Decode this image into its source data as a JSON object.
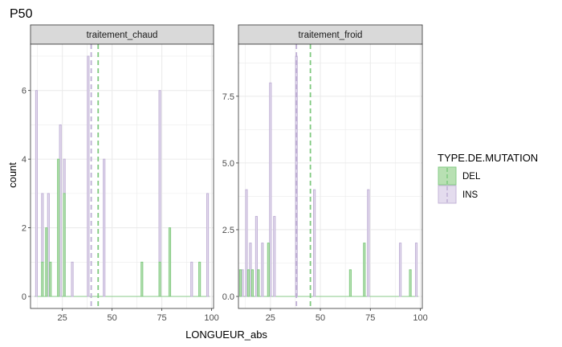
{
  "chart_data": {
    "type": "bar",
    "title": "P50",
    "xlabel": "LONGUEUR_abs",
    "ylabel": "count",
    "grid": true,
    "legend_placement": "right",
    "legend": {
      "title": "TYPE.DE.MUTATION",
      "entries": [
        {
          "label": "DEL",
          "fill": "#b8e0b3",
          "stroke": "#7fc97f"
        },
        {
          "label": "INS",
          "fill": "#e4dcee",
          "stroke": "#beaed4"
        }
      ]
    },
    "colors": {
      "DEL_fill": "#b8e0b3",
      "DEL_stroke": "#7fc97f",
      "INS_fill": "#e4dcee",
      "INS_stroke": "#beaed4",
      "strip_bg": "#d9d9d9",
      "grid": "#ebebeb"
    },
    "xlim": [
      9,
      101
    ],
    "x_ticks": [
      25,
      50,
      75,
      100
    ],
    "bar_width": 0.9,
    "panels": [
      {
        "strip": "traitement_chaud",
        "ylim": [
          -0.35,
          7.35
        ],
        "y_ticks": [
          0,
          2,
          4,
          6
        ],
        "y_tick_labels": [
          "0",
          "2",
          "4",
          "6"
        ],
        "mean_lines": {
          "INS": 39.5,
          "DEL": 43
        },
        "series": [
          {
            "name": "INS",
            "x": [
              12,
              15,
              18,
              24,
              26,
              30,
              38,
              46,
              74,
              90,
              98
            ],
            "y": [
              6,
              3,
              3,
              5,
              4,
              1,
              7,
              4,
              6,
              1,
              3
            ]
          },
          {
            "name": "DEL",
            "x": [
              15,
              17,
              19,
              23,
              26,
              65,
              74,
              79,
              94
            ],
            "y": [
              1,
              2,
              1,
              4,
              3,
              1,
              1,
              2,
              1
            ]
          }
        ]
      },
      {
        "strip": "traitement_froid",
        "ylim": [
          -0.45,
          9.45
        ],
        "y_ticks": [
          0,
          2.5,
          5,
          7.5
        ],
        "y_tick_labels": [
          "0.0",
          "2.5",
          "5.0",
          "7.5"
        ],
        "mean_lines": {
          "INS": 38,
          "DEL": 45
        },
        "series": [
          {
            "name": "INS",
            "x": [
              11,
              13,
              15,
              18,
              21,
              25,
              27,
              38,
              47,
              74,
              90,
              98
            ],
            "y": [
              1,
              4,
              2,
              3,
              2,
              8,
              3,
              9,
              4,
              4,
              2,
              2
            ]
          },
          {
            "name": "DEL",
            "x": [
              10,
              14,
              16,
              19,
              24,
              65,
              72,
              95
            ],
            "y": [
              1,
              1,
              1,
              1,
              2,
              1,
              2,
              1
            ]
          }
        ]
      }
    ]
  }
}
